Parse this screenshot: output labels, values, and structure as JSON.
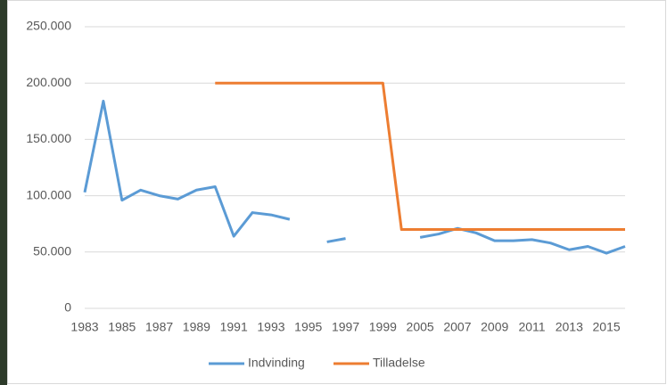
{
  "chart_data": {
    "type": "line",
    "categories": [
      "1983",
      "1984",
      "1985",
      "1986",
      "1987",
      "1988",
      "1989",
      "1990",
      "1991",
      "1992",
      "1993",
      "1994",
      "1995",
      "1996",
      "1997",
      "1998",
      "1999",
      null,
      "2005",
      "2006",
      "2007",
      "2008",
      "2009",
      "2010",
      "2011",
      "2012",
      "2013",
      "2014",
      "2015",
      "2016"
    ],
    "series": [
      {
        "name": "Indvinding",
        "color": "#5b9bd5",
        "values": [
          103000,
          184000,
          96000,
          105000,
          100000,
          97000,
          105000,
          108000,
          64000,
          85000,
          83000,
          79000,
          null,
          59000,
          62000,
          null,
          null,
          null,
          63000,
          66000,
          71000,
          67000,
          60000,
          60000,
          61000,
          58000,
          52000,
          55000,
          49000,
          55000
        ]
      },
      {
        "name": "Tilladelse",
        "color": "#ed7d31",
        "values": [
          null,
          null,
          null,
          null,
          null,
          null,
          null,
          200000,
          200000,
          200000,
          200000,
          200000,
          200000,
          200000,
          200000,
          200000,
          200000,
          70000,
          70000,
          70000,
          70000,
          70000,
          70000,
          70000,
          70000,
          70000,
          70000,
          70000,
          70000,
          70000
        ]
      }
    ],
    "ylim": [
      0,
      250000
    ],
    "yticks": [
      0,
      {
        "value": 50000,
        "label": "50.000"
      },
      {
        "value": 100000,
        "label": "100.000"
      },
      {
        "value": 150000,
        "label": "150.000"
      },
      {
        "value": 200000,
        "label": "200.000"
      },
      {
        "value": 250000,
        "label": "250.000"
      }
    ],
    "grid": true,
    "legend": "bottom"
  }
}
